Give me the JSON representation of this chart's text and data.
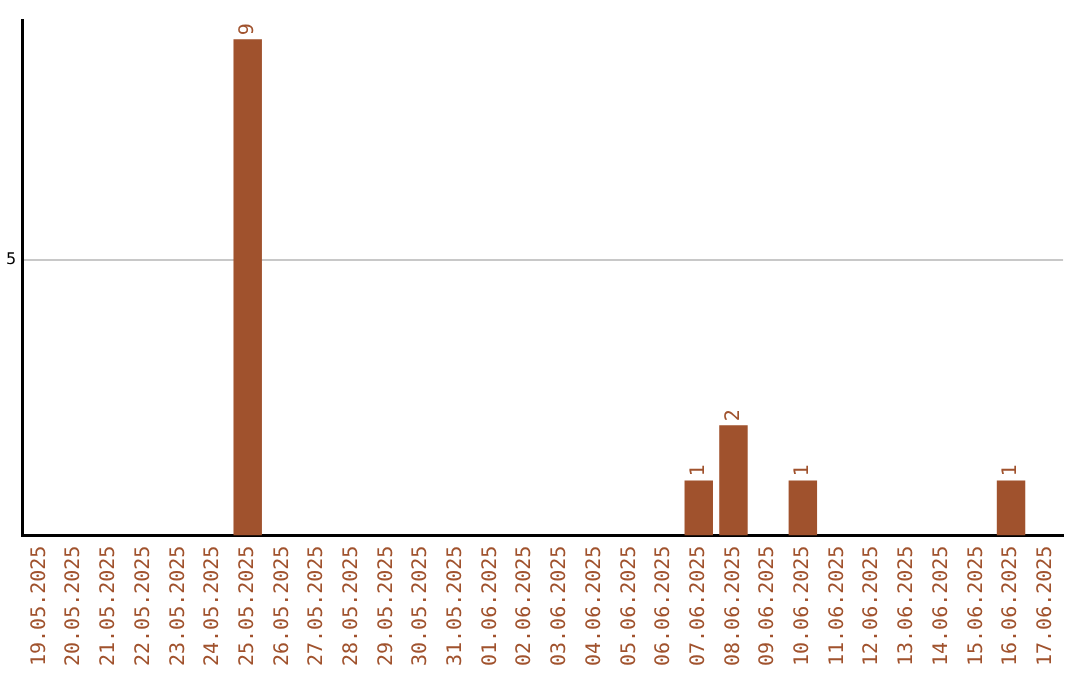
{
  "chart_data": {
    "type": "bar",
    "categories": [
      "19.05.2025",
      "20.05.2025",
      "21.05.2025",
      "22.05.2025",
      "23.05.2025",
      "24.05.2025",
      "25.05.2025",
      "26.05.2025",
      "27.05.2025",
      "28.05.2025",
      "29.05.2025",
      "30.05.2025",
      "31.05.2025",
      "01.06.2025",
      "02.06.2025",
      "03.06.2025",
      "04.06.2025",
      "05.06.2025",
      "06.06.2025",
      "07.06.2025",
      "08.06.2025",
      "09.06.2025",
      "10.06.2025",
      "11.06.2025",
      "12.06.2025",
      "13.06.2025",
      "14.06.2025",
      "15.06.2025",
      "16.06.2025",
      "17.06.2025"
    ],
    "values": [
      0,
      0,
      0,
      0,
      0,
      0,
      9,
      0,
      0,
      0,
      0,
      0,
      0,
      0,
      0,
      0,
      0,
      0,
      0,
      1,
      2,
      0,
      1,
      0,
      0,
      0,
      0,
      0,
      1,
      0
    ],
    "value_labels": [
      null,
      null,
      null,
      null,
      null,
      null,
      "9",
      null,
      null,
      null,
      null,
      null,
      null,
      null,
      null,
      null,
      null,
      null,
      null,
      "1",
      "2",
      null,
      "1",
      null,
      null,
      null,
      null,
      null,
      "1",
      null
    ],
    "color": "#a0522d",
    "ylim": [
      0,
      9.35
    ],
    "yticks": [
      5
    ],
    "grid": "y",
    "legend": false
  }
}
